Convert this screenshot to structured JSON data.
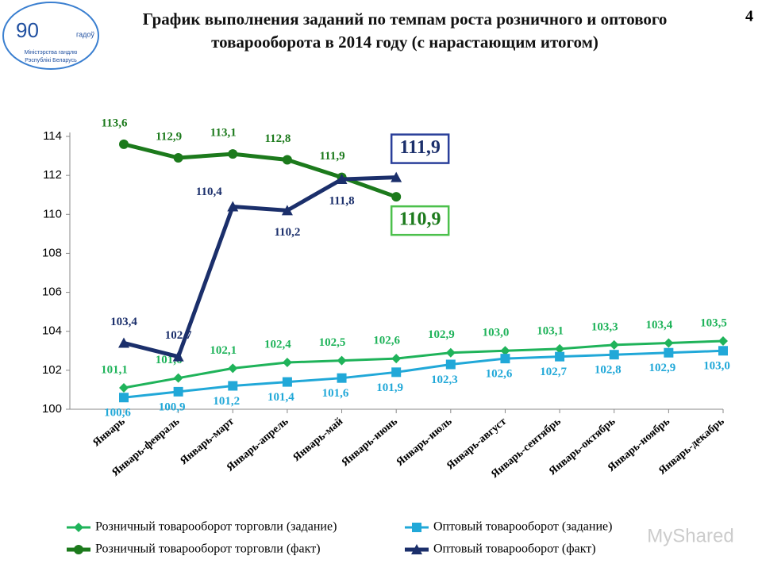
{
  "page_number": "4",
  "logo": {
    "number": "90",
    "caption": "гадоў",
    "ministry": "Міністэрства гандлю",
    "country": "Рэспублікі Беларусь"
  },
  "watermark": "MyShared",
  "chart_data": {
    "type": "line",
    "title": "График выполнения заданий по темпам роста розничного и оптового товарооборота в 2014 году (с нарастающим итогом)",
    "categories": [
      "Январь",
      "Январь-февраль",
      "Январь-март",
      "Январь-апрель",
      "Январь-май",
      "Январь-июнь",
      "Январь-июль",
      "Январь-август",
      "Январь-сентябрь",
      "Январь-октябрь",
      "Январь-ноябрь",
      "Январь-декабрь"
    ],
    "ylim": [
      100,
      114
    ],
    "yticks": [
      100,
      102,
      104,
      106,
      108,
      110,
      112,
      114
    ],
    "grid": false,
    "legend": "bottom",
    "series": [
      {
        "name": "Розничный товарооборот торговли (задание)",
        "color": "#1fb35a",
        "marker": "diamond",
        "values": [
          101.1,
          101.6,
          102.1,
          102.4,
          102.5,
          102.6,
          102.9,
          103.0,
          103.1,
          103.3,
          103.4,
          103.5
        ],
        "value_labels": [
          "101,1",
          "101,6",
          "102,1",
          "102,4",
          "102,5",
          "102,6",
          "102,9",
          "103,0",
          "103,1",
          "103,3",
          "103,4",
          "103,5"
        ]
      },
      {
        "name": "Оптовый товарооборот (задание)",
        "color": "#21a8d8",
        "marker": "square",
        "values": [
          100.6,
          100.9,
          101.2,
          101.4,
          101.6,
          101.9,
          102.3,
          102.6,
          102.7,
          102.8,
          102.9,
          103.0
        ],
        "value_labels": [
          "100,6",
          "100,9",
          "101,2",
          "101,4",
          "101,6",
          "101,9",
          "102,3",
          "102,6",
          "102,7",
          "102,8",
          "102,9",
          "103,0"
        ]
      },
      {
        "name": "Розничный товарооборот торговли (факт)",
        "color": "#1c7a1c",
        "marker": "circle",
        "values": [
          113.6,
          112.9,
          113.1,
          112.8,
          111.9,
          110.9,
          null,
          null,
          null,
          null,
          null,
          null
        ],
        "value_labels": [
          "113,6",
          "112,9",
          "113,1",
          "112,8",
          "111,9",
          "110,9",
          null,
          null,
          null,
          null,
          null,
          null
        ]
      },
      {
        "name": "Оптовый товарооборот (факт)",
        "color": "#1b2f6b",
        "marker": "triangle",
        "values": [
          103.4,
          102.7,
          110.4,
          110.2,
          111.8,
          111.9,
          null,
          null,
          null,
          null,
          null,
          null
        ],
        "value_labels": [
          "103,4",
          "102,7",
          "110,4",
          "110,2",
          "111,8",
          "111,9",
          null,
          null,
          null,
          null,
          null,
          null
        ]
      }
    ]
  }
}
